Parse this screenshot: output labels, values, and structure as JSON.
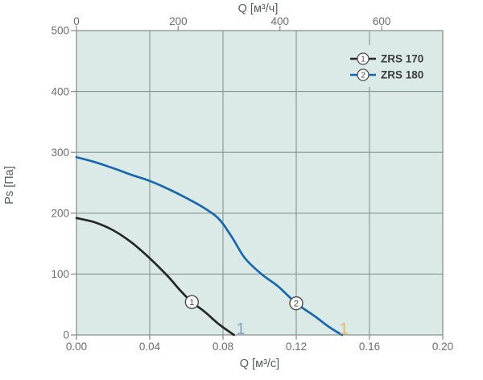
{
  "colors": {
    "background": "#ffffff",
    "plot_background": "#dbeae6",
    "grid": "#879390",
    "axis_text": "#6d6d6d",
    "title_text": "#565c5a",
    "legend_text": "#3d3d3d",
    "marker_fill": "#ffffff",
    "marker_stroke": "#4d4d4d",
    "series1": "#262626",
    "series2": "#1766ae",
    "annotation1": "#7fa3c9",
    "annotation2": "#ecb45f"
  },
  "chart_data": {
    "type": "line",
    "top_axis": {
      "label": "Q [м³/ч]",
      "ticks": [
        0,
        200,
        400,
        600
      ],
      "unit": "м³/ч",
      "conversion_to_bottom_units": 3600
    },
    "bottom_axis": {
      "label": "Q [м³/с]",
      "tick_labels": [
        "0.00",
        "0.04",
        "0.08",
        "0.12",
        "0.16",
        "0.20"
      ],
      "tick_values": [
        0,
        0.04,
        0.08,
        0.12,
        0.16,
        0.2
      ],
      "min": 0,
      "max": 0.2
    },
    "y_axis": {
      "label": "Ps [Па]",
      "ticks": [
        0,
        100,
        200,
        300,
        400,
        500
      ],
      "min": 0,
      "max": 500
    },
    "grid": true,
    "legend_position": "top-right",
    "series": [
      {
        "id": "1",
        "name": "ZRS 170",
        "color_key": "series1",
        "marker_q": 0.063,
        "points": [
          [
            0,
            192
          ],
          [
            0.01,
            185
          ],
          [
            0.02,
            172
          ],
          [
            0.03,
            152
          ],
          [
            0.04,
            126
          ],
          [
            0.05,
            96
          ],
          [
            0.057,
            72
          ],
          [
            0.063,
            54
          ],
          [
            0.07,
            38
          ],
          [
            0.078,
            17
          ],
          [
            0.086,
            0
          ]
        ]
      },
      {
        "id": "2",
        "name": "ZRS 180",
        "color_key": "series2",
        "marker_q": 0.12,
        "points": [
          [
            0,
            292
          ],
          [
            0.01,
            284
          ],
          [
            0.02,
            274
          ],
          [
            0.03,
            263
          ],
          [
            0.04,
            253
          ],
          [
            0.05,
            240
          ],
          [
            0.06,
            225
          ],
          [
            0.07,
            208
          ],
          [
            0.078,
            190
          ],
          [
            0.085,
            160
          ],
          [
            0.092,
            126
          ],
          [
            0.101,
            100
          ],
          [
            0.11,
            80
          ],
          [
            0.12,
            52
          ],
          [
            0.13,
            31
          ],
          [
            0.138,
            13
          ],
          [
            0.145,
            0
          ]
        ]
      }
    ],
    "annotations": [
      {
        "text": "1",
        "q": 0.0897,
        "ps": 1,
        "color_key": "annotation1"
      },
      {
        "text": "1",
        "q": 0.146,
        "ps": 1,
        "color_key": "annotation2"
      }
    ]
  },
  "legend": {
    "items": [
      {
        "marker": "1",
        "label": "ZRS 170"
      },
      {
        "marker": "2",
        "label": "ZRS 180"
      }
    ]
  }
}
